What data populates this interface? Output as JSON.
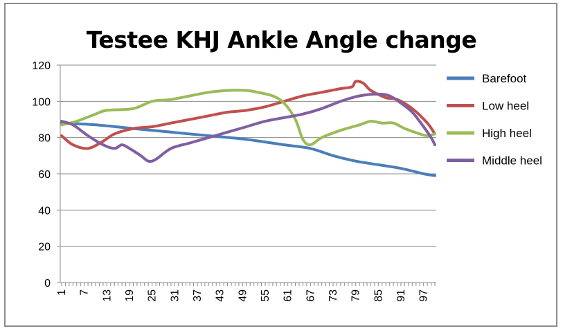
{
  "chart_data": {
    "type": "line",
    "title": "Testee KHJ Ankle Angle change",
    "xlabel": "",
    "ylabel": "",
    "ylim": [
      0,
      120
    ],
    "yticks": [
      "0",
      "20",
      "40",
      "60",
      "80",
      "100",
      "120"
    ],
    "xlim": [
      1,
      100
    ],
    "xtick_labels": [
      1,
      7,
      13,
      19,
      25,
      31,
      37,
      43,
      49,
      55,
      61,
      67,
      73,
      79,
      85,
      91,
      97
    ],
    "grid": "horizontal",
    "legend_position": "right",
    "series": [
      {
        "name": "Barefoot",
        "color": "#4a7ebb",
        "points": [
          [
            1,
            88
          ],
          [
            10,
            87
          ],
          [
            20,
            85
          ],
          [
            30,
            83
          ],
          [
            40,
            81
          ],
          [
            50,
            79
          ],
          [
            60,
            76
          ],
          [
            67,
            74
          ],
          [
            73,
            70
          ],
          [
            79,
            67
          ],
          [
            85,
            65
          ],
          [
            91,
            63
          ],
          [
            97,
            60
          ],
          [
            100,
            59
          ]
        ]
      },
      {
        "name": "Low heel",
        "color": "#c0504d",
        "points": [
          [
            1,
            81
          ],
          [
            4,
            76
          ],
          [
            8,
            74
          ],
          [
            12,
            78
          ],
          [
            15,
            82
          ],
          [
            20,
            85
          ],
          [
            25,
            86
          ],
          [
            30,
            88
          ],
          [
            35,
            90
          ],
          [
            40,
            92
          ],
          [
            45,
            94
          ],
          [
            50,
            95
          ],
          [
            55,
            97
          ],
          [
            60,
            100
          ],
          [
            65,
            103
          ],
          [
            70,
            105
          ],
          [
            75,
            107
          ],
          [
            78,
            108
          ],
          [
            79,
            111
          ],
          [
            81,
            110
          ],
          [
            83,
            106
          ],
          [
            87,
            102
          ],
          [
            90,
            101
          ],
          [
            94,
            96
          ],
          [
            98,
            88
          ],
          [
            100,
            82
          ]
        ]
      },
      {
        "name": "High heel",
        "color": "#9bbb59",
        "points": [
          [
            1,
            87
          ],
          [
            5,
            89
          ],
          [
            10,
            93
          ],
          [
            13,
            95
          ],
          [
            20,
            96
          ],
          [
            25,
            100
          ],
          [
            30,
            101
          ],
          [
            35,
            103
          ],
          [
            40,
            105
          ],
          [
            45,
            106
          ],
          [
            50,
            106
          ],
          [
            53,
            105
          ],
          [
            57,
            103
          ],
          [
            60,
            99
          ],
          [
            63,
            90
          ],
          [
            65,
            79
          ],
          [
            67,
            76
          ],
          [
            70,
            80
          ],
          [
            75,
            84
          ],
          [
            80,
            87
          ],
          [
            83,
            89
          ],
          [
            86,
            88
          ],
          [
            89,
            88
          ],
          [
            92,
            85
          ],
          [
            96,
            82
          ],
          [
            98,
            81
          ],
          [
            100,
            82
          ]
        ]
      },
      {
        "name": "Middle heel",
        "color": "#7f5fa0",
        "points": [
          [
            1,
            89
          ],
          [
            4,
            87
          ],
          [
            8,
            81
          ],
          [
            12,
            76
          ],
          [
            15,
            74
          ],
          [
            17,
            76
          ],
          [
            19,
            74
          ],
          [
            22,
            70
          ],
          [
            24,
            67
          ],
          [
            26,
            68
          ],
          [
            30,
            74
          ],
          [
            35,
            77
          ],
          [
            40,
            80
          ],
          [
            45,
            83
          ],
          [
            50,
            86
          ],
          [
            55,
            89
          ],
          [
            60,
            91
          ],
          [
            65,
            93
          ],
          [
            70,
            96
          ],
          [
            75,
            100
          ],
          [
            80,
            103
          ],
          [
            85,
            104
          ],
          [
            88,
            103
          ],
          [
            91,
            99
          ],
          [
            94,
            94
          ],
          [
            97,
            86
          ],
          [
            99,
            80
          ],
          [
            100,
            76
          ]
        ]
      }
    ]
  }
}
